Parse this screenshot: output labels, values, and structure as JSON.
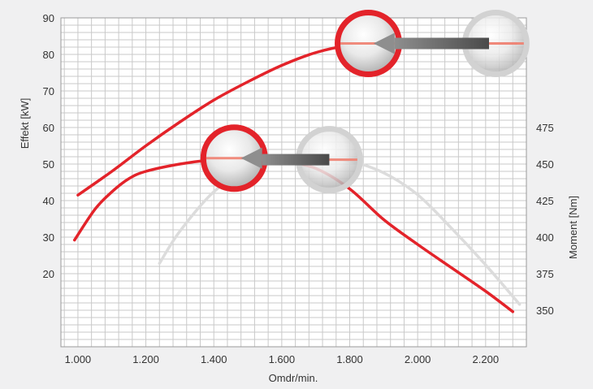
{
  "chart_data": {
    "type": "line",
    "xlabel": "Omdr/min.",
    "ylabel_left": "Effekt [kW]",
    "ylabel_right": "Moment [Nm]",
    "xlim": [
      950,
      2320
    ],
    "ylim_left": [
      0,
      90
    ],
    "ylim_right": [
      325,
      550
    ],
    "grid": true,
    "x_ticks": [
      "1.000",
      "1.200",
      "1.400",
      "1.600",
      "1.800",
      "2.000",
      "2.200"
    ],
    "y_left_ticks": [
      "20",
      "30",
      "40",
      "50",
      "60",
      "70",
      "80",
      "90"
    ],
    "y_right_ticks": [
      "350",
      "375",
      "400",
      "425",
      "450",
      "475"
    ],
    "series": [
      {
        "axis": "left",
        "color": "#e3232a",
        "highlight_color": "#f08070",
        "points": [
          [
            1000,
            41.5
          ],
          [
            1100,
            48
          ],
          [
            1200,
            55
          ],
          [
            1300,
            61.5
          ],
          [
            1400,
            67.5
          ],
          [
            1500,
            72.5
          ],
          [
            1600,
            77
          ],
          [
            1700,
            80.5
          ],
          [
            1800,
            82.5
          ],
          [
            1900,
            83
          ],
          [
            2000,
            83
          ],
          [
            2100,
            83
          ],
          [
            2200,
            83
          ],
          [
            2290,
            83
          ]
        ]
      },
      {
        "axis": "right",
        "color": "#e3232a",
        "highlight_color": "#f08070",
        "points": [
          [
            990,
            398
          ],
          [
            1050,
            419
          ],
          [
            1100,
            431
          ],
          [
            1150,
            440
          ],
          [
            1200,
            445
          ],
          [
            1300,
            450
          ],
          [
            1400,
            453
          ],
          [
            1500,
            454
          ],
          [
            1600,
            452
          ],
          [
            1700,
            447
          ],
          [
            1800,
            433
          ],
          [
            1900,
            412
          ],
          [
            2000,
            395
          ],
          [
            2100,
            379
          ],
          [
            2200,
            363
          ],
          [
            2280,
            349
          ]
        ]
      },
      {
        "axis": "right",
        "color": "#dcdcdc",
        "points": [
          [
            1240,
            382
          ],
          [
            1300,
            404
          ],
          [
            1400,
            431
          ],
          [
            1500,
            446
          ],
          [
            1600,
            452
          ],
          [
            1700,
            454
          ],
          [
            1800,
            452
          ],
          [
            1900,
            444
          ],
          [
            2000,
            429
          ],
          [
            2100,
            406
          ],
          [
            2200,
            381
          ],
          [
            2300,
            354
          ]
        ]
      }
    ],
    "annotations": [
      {
        "type": "marker",
        "style": "red-ring",
        "axis": "left",
        "at": [
          1855,
          83
        ]
      },
      {
        "type": "marker",
        "style": "grey-ring",
        "axis": "left",
        "at": [
          2230,
          83
        ]
      },
      {
        "type": "arrow",
        "axis": "left",
        "from": [
          2210,
          83
        ],
        "to": [
          1870,
          83
        ]
      },
      {
        "type": "marker",
        "style": "red-ring",
        "axis": "right",
        "at": [
          1460,
          454
        ]
      },
      {
        "type": "marker",
        "style": "grey-ring",
        "axis": "right",
        "at": [
          1740,
          453
        ]
      },
      {
        "type": "arrow",
        "axis": "right",
        "from": [
          1740,
          453
        ],
        "to": [
          1480,
          454
        ]
      }
    ]
  }
}
